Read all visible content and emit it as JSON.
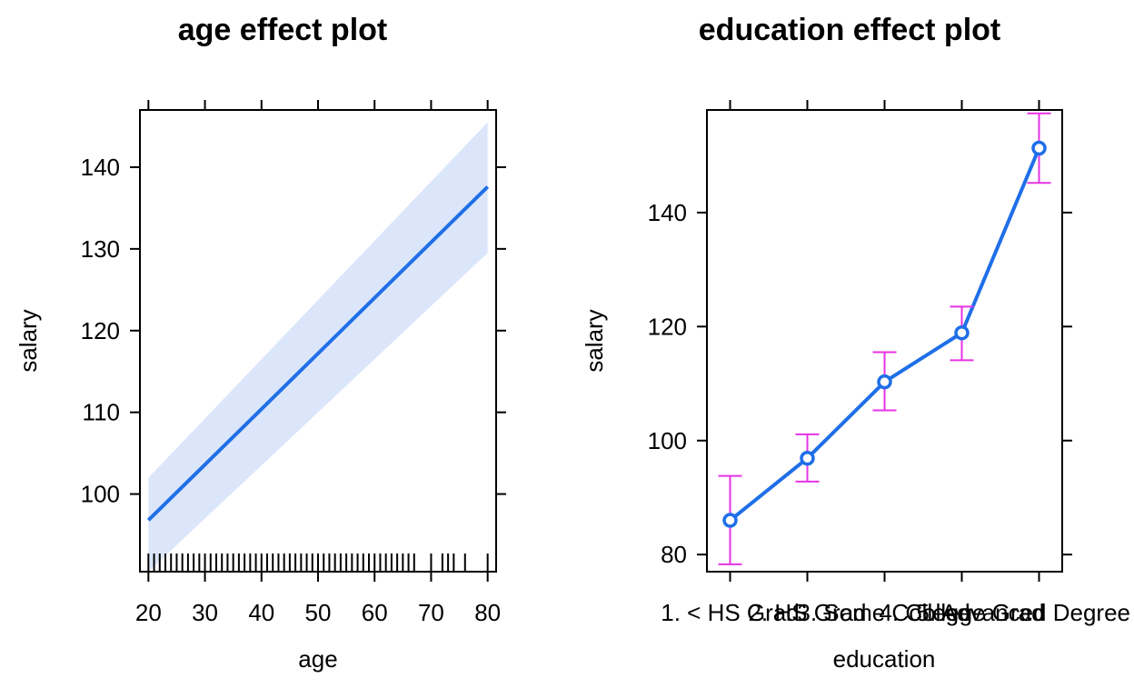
{
  "chart_data": [
    {
      "type": "line",
      "title": "age effect plot",
      "xlabel": "age",
      "ylabel": "salary",
      "xlim": [
        18.5,
        81.5
      ],
      "ylim": [
        90.5,
        147
      ],
      "x_ticks": [
        20,
        30,
        40,
        50,
        60,
        70,
        80
      ],
      "y_ticks": [
        100,
        110,
        120,
        130,
        140
      ],
      "series": [
        {
          "x": [
            20,
            80
          ],
          "y": [
            96.8,
            137.6
          ],
          "lower": [
            90.5,
            129.5
          ],
          "upper": [
            102.0,
            145.5
          ]
        }
      ],
      "line_color": "#1f6fe8",
      "band_color": "#dce6fb",
      "rug": [
        20,
        21,
        22,
        23,
        24,
        25,
        26,
        27,
        28,
        29,
        30,
        31,
        32,
        33,
        34,
        35,
        36,
        37,
        38,
        39,
        40,
        41,
        42,
        43,
        44,
        45,
        46,
        47,
        48,
        49,
        50,
        51,
        52,
        53,
        54,
        55,
        56,
        57,
        58,
        59,
        60,
        61,
        62,
        63,
        64,
        65,
        66,
        67,
        70,
        72,
        73,
        74,
        76,
        80
      ],
      "grid": false
    },
    {
      "type": "line",
      "title": "education effect plot",
      "xlabel": "education",
      "ylabel": "salary",
      "categories": [
        "1. < HS Grad",
        "2. HS Grad",
        "3. Some College",
        "4. College Grad",
        "5. Advanced Degree"
      ],
      "ylim": [
        77,
        158
      ],
      "y_ticks": [
        80,
        100,
        120,
        140
      ],
      "series": [
        {
          "values": [
            86.0,
            96.9,
            110.3,
            118.9,
            151.3
          ],
          "lower": [
            78.3,
            92.8,
            105.3,
            114.1,
            145.2
          ],
          "upper": [
            93.8,
            101.1,
            115.5,
            123.5,
            157.4
          ]
        }
      ],
      "line_color": "#1f6fe8",
      "errorbar_color": "#e633e6",
      "grid": false
    }
  ]
}
